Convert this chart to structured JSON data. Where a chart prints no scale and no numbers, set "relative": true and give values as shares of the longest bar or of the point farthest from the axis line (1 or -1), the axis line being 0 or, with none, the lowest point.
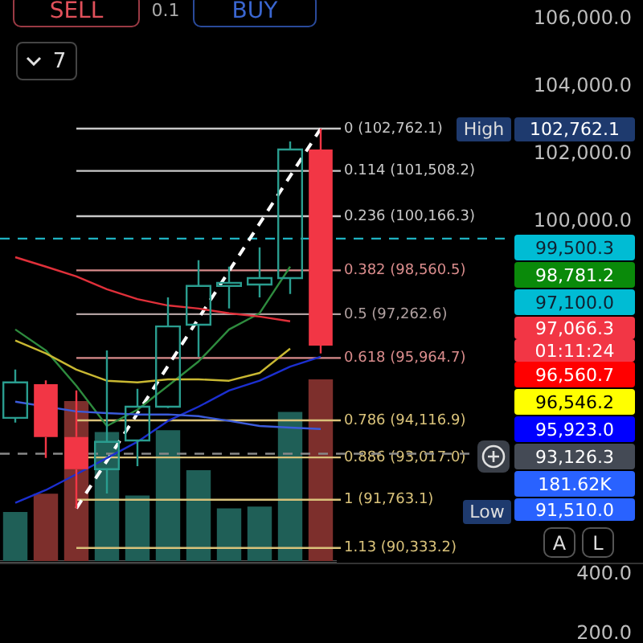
{
  "chart_data": [
    {
      "type": "candlestick",
      "categories": [
        null,
        null,
        null,
        null,
        null,
        null,
        null,
        null,
        null,
        null,
        null
      ],
      "ohlc": [
        [
          94190,
          95620,
          94050,
          95240
        ],
        [
          95190,
          95300,
          93000,
          93620
        ],
        [
          93620,
          95000,
          91510,
          92670
        ],
        [
          92670,
          96190,
          91950,
          93480
        ],
        [
          93520,
          95050,
          92760,
          94520
        ],
        [
          94520,
          97760,
          94480,
          96900
        ],
        [
          96950,
          98860,
          96000,
          98100
        ],
        [
          98100,
          98670,
          97430,
          98190
        ],
        [
          98140,
          99240,
          97760,
          98330
        ],
        [
          98330,
          102380,
          97860,
          102140
        ],
        [
          102140,
          102762.1,
          96100,
          96330
        ]
      ],
      "series": [
        {
          "type": "line",
          "color": "#e0303a",
          "values": [
            98950,
            98670,
            98380,
            98000,
            97710,
            97520,
            97430,
            97290,
            97190,
            97050,
            null
          ]
        },
        {
          "type": "line",
          "color": "#c9b832",
          "values": [
            96480,
            96100,
            95620,
            95290,
            95240,
            95330,
            95330,
            95290,
            95520,
            96240,
            null
          ]
        },
        {
          "type": "line",
          "color": "#3b5bdb",
          "values": [
            94670,
            null,
            94380,
            94330,
            94290,
            94290,
            94240,
            94100,
            93950,
            93900,
            93860
          ]
        },
        {
          "type": "line",
          "color": "#1c2fd0",
          "values": [
            91670,
            92050,
            92520,
            93000,
            93480,
            94100,
            94520,
            95000,
            95290,
            95710,
            96000
          ]
        },
        {
          "type": "line",
          "color": "#2e8b3e",
          "values": [
            96810,
            96190,
            95140,
            93950,
            94430,
            95140,
            95860,
            96810,
            97290,
            98670,
            null
          ]
        },
        {
          "type": "line",
          "color": "#ffffff",
          "line_style": "dashed",
          "values": [
            null,
            null,
            91510,
            null,
            null,
            null,
            null,
            null,
            null,
            null,
            102760
          ]
        }
      ],
      "ylim": [
        89900,
        106000
      ],
      "yticks": [
        {
          "value": 100000,
          "label": "100,000.0"
        },
        {
          "value": 102000,
          "label": "102,000.0"
        },
        {
          "value": 104000,
          "label": "104,000.0"
        },
        {
          "value": 106000,
          "label": "106,000.0"
        }
      ],
      "tick_labels": "y",
      "ref_lines": [
        {
          "axis": "y",
          "value": 102762.1,
          "label": "0 (102,762.1)",
          "color": "#c8c8c8"
        },
        {
          "axis": "y",
          "value": 101508.2,
          "label": "0.114 (101,508.2)",
          "color": "#c8c8c8"
        },
        {
          "axis": "y",
          "value": 100166.3,
          "label": "0.236 (100,166.3)",
          "color": "#c8c8c8"
        },
        {
          "axis": "y",
          "value": 98560.5,
          "label": "0.382 (98,560.5)",
          "color": "#d98c8c"
        },
        {
          "axis": "y",
          "value": 97262.6,
          "label": "0.5 (97,262.6)",
          "color": "#b0a0a0"
        },
        {
          "axis": "y",
          "value": 95964.7,
          "label": "0.618 (95,964.7)",
          "color": "#d98c8c"
        },
        {
          "axis": "y",
          "value": 94116.9,
          "label": "0.786 (94,116.9)",
          "color": "#d9c27a"
        },
        {
          "axis": "y",
          "value": 93017.0,
          "label": "0.886 (93,017.0)",
          "color": "#d9c27a"
        },
        {
          "axis": "y",
          "value": 91763.1,
          "label": "1 (91,763.1)",
          "color": "#d9c27a"
        },
        {
          "axis": "y",
          "value": 90333.2,
          "label": "1.13 (90,333.2)",
          "color": "#d9c27a"
        },
        {
          "axis": "y",
          "value": 99500.3,
          "color": "#1fb3c2",
          "line_style": "dashed"
        },
        {
          "axis": "y",
          "value": 93126.3,
          "color": "#888888",
          "line_style": "dashed"
        }
      ],
      "annotations": [
        "SELL",
        "0.1",
        "BUY",
        "7",
        "High",
        "102,762.1",
        "99,500.3",
        "98,781.2",
        "97,100.0",
        "97,066.3",
        "01:11:24",
        "96,560.7",
        "96,546.2",
        "95,923.0",
        "93,126.3",
        "181.62K",
        "91,510.0",
        "Low",
        "A",
        "L"
      ]
    },
    {
      "type": "bar",
      "relative": true,
      "tick_labels": false,
      "categories": [
        null,
        null,
        null,
        null,
        null,
        null,
        null,
        null,
        null,
        null,
        null
      ],
      "values": [
        0.27,
        0.37,
        0.88,
        0.71,
        0.36,
        0.72,
        0.5,
        0.29,
        0.3,
        0.82,
        1
      ],
      "colors": [
        "#1f5f57",
        "#7d2f2c",
        "#7d2f2c",
        "#1f5f57",
        "#1f5f57",
        "#1f5f57",
        "#1f5f57",
        "#1f5f57",
        "#1f5f57",
        "#1f5f57",
        "#7d2f2c"
      ]
    },
    {
      "type": "line",
      "tick_labels": "y",
      "categories": [
        null,
        null,
        null,
        null,
        null,
        null,
        null,
        null,
        null,
        null,
        null
      ],
      "values": [
        null,
        null,
        null,
        null,
        null,
        null,
        null,
        null,
        null,
        null,
        null
      ],
      "ylim": [
        170,
        434
      ],
      "yticks": [
        {
          "value": 200,
          "label": "200.0"
        },
        {
          "value": 400,
          "label": "400.0"
        }
      ]
    }
  ]
}
